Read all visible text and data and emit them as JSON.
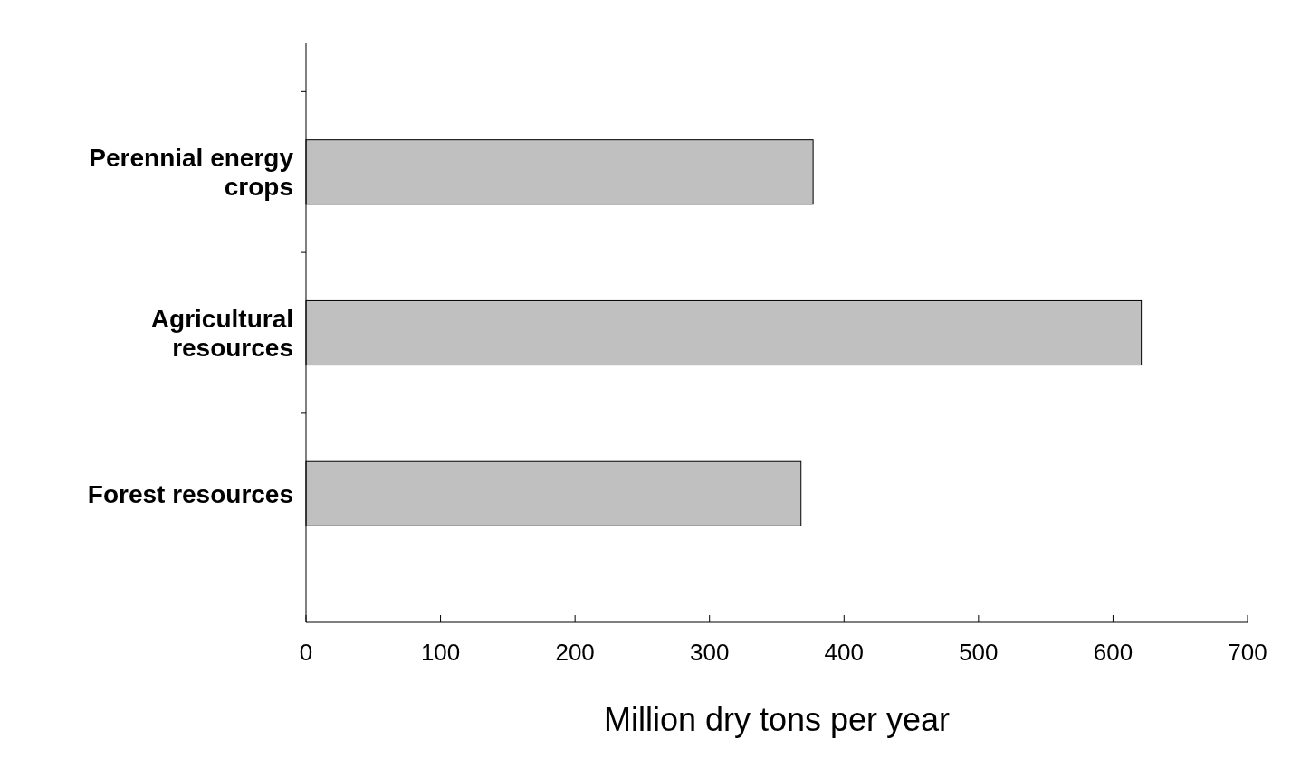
{
  "chart_data": {
    "type": "bar",
    "orientation": "horizontal",
    "categories": [
      "Perennial energy crops",
      "Agricultural resources",
      "Forest resources"
    ],
    "values": [
      377,
      621,
      368
    ],
    "color": "#c0c0c0",
    "xlabel": "Million dry tons per year",
    "xlim": [
      0,
      700
    ],
    "xticks": [
      0,
      100,
      200,
      300,
      400,
      500,
      600,
      700
    ],
    "grid": false
  }
}
